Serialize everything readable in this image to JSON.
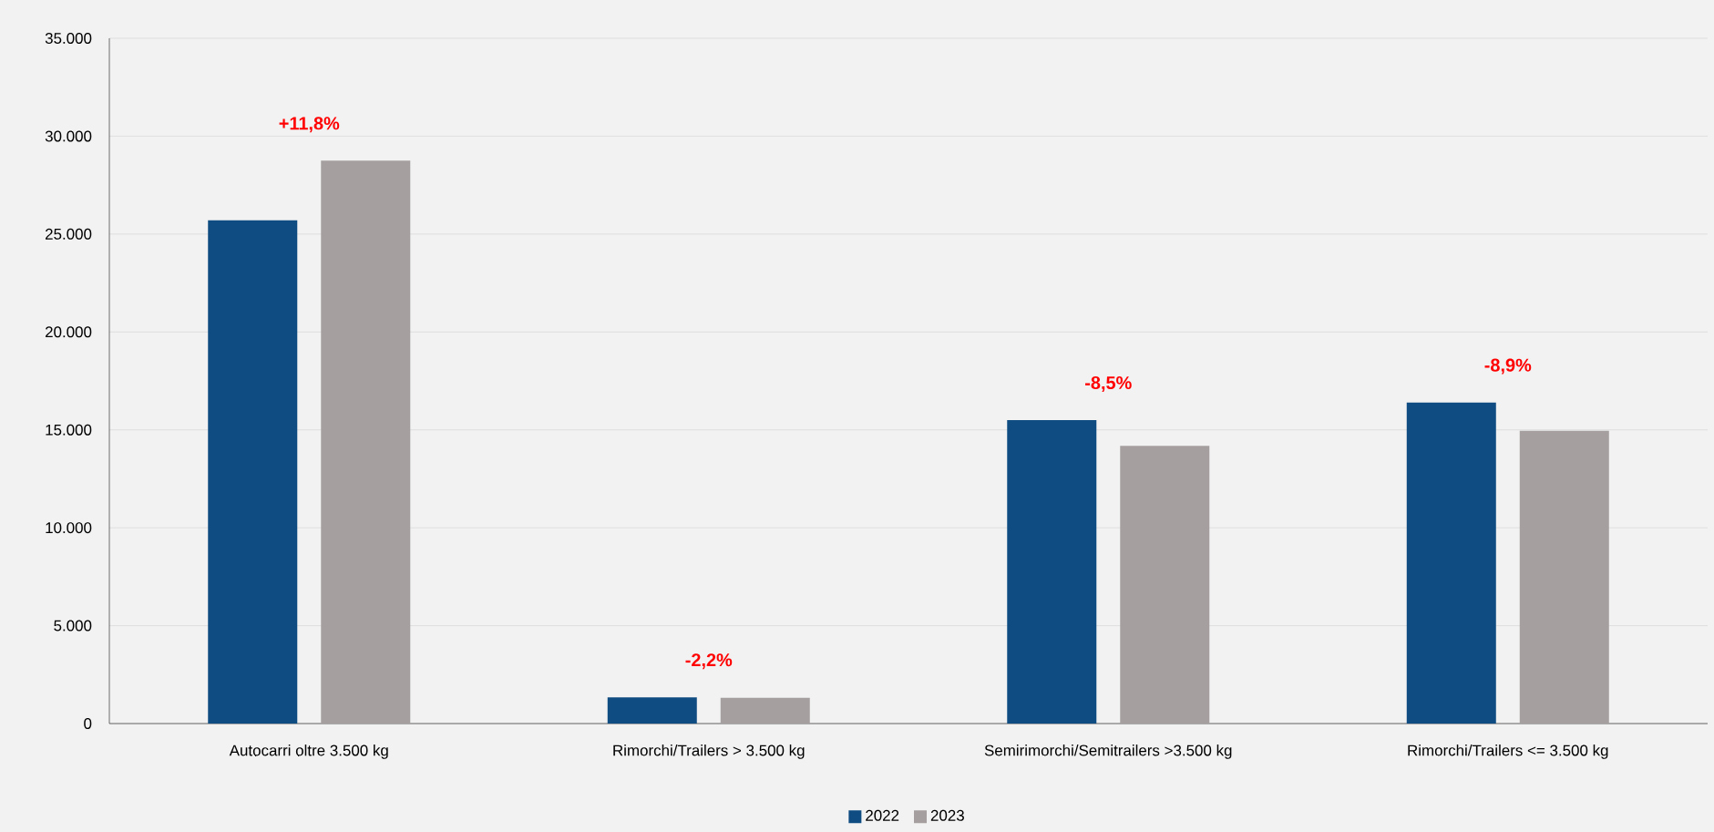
{
  "chart_data": {
    "type": "bar",
    "categories": [
      "Autocarri oltre 3.500 kg",
      "Rimorchi/Trailers > 3.500 kg",
      "Semirimorchi/Semitrailers >3.500 kg",
      "Rimorchi/Trailers <= 3.500 kg"
    ],
    "series": [
      {
        "name": "2022",
        "color": "#0f4c81",
        "values": [
          25700,
          1340,
          15500,
          16400
        ]
      },
      {
        "name": "2023",
        "color": "#a5a09f",
        "values": [
          28750,
          1310,
          14180,
          14950
        ]
      }
    ],
    "ylim": [
      0,
      35000
    ],
    "yticks": [
      0,
      {
        "value": 5000,
        "label": "5.000"
      },
      {
        "value": 10000,
        "label": "10.000"
      },
      {
        "value": 15000,
        "label": "15.000"
      },
      {
        "value": 20000,
        "label": "20.000"
      },
      {
        "value": 25000,
        "label": "25.000"
      },
      {
        "value": 30000,
        "label": "30.000"
      },
      {
        "value": 35000,
        "label": "35.000"
      }
    ],
    "grid": "y",
    "legend": "bottom",
    "annotations": [
      "+11,8%",
      "-2,2%",
      "-8,5%",
      "-8,9%"
    ]
  }
}
